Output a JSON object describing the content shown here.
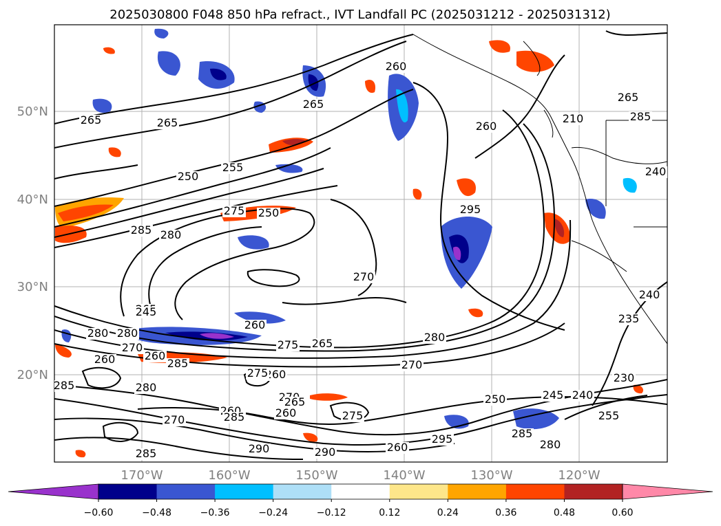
{
  "title": "2025030800 F048 850 hPa refract., IVT Landfall PC (2025031212 - 2025031312)",
  "map": {
    "lat_labels": [
      "50°N",
      "40°N",
      "30°N",
      "20°N"
    ],
    "lon_labels": [
      "170°W",
      "160°W",
      "150°W",
      "140°W",
      "130°W",
      "120°W"
    ],
    "contour_labels": [
      "265",
      "265",
      "265",
      "250",
      "255",
      "260",
      "250",
      "275",
      "260",
      "270",
      "285",
      "280",
      "295",
      "270",
      "265",
      "260",
      "245",
      "280",
      "280",
      "270",
      "285",
      "260",
      "275",
      "265",
      "260",
      "285",
      "280",
      "270",
      "260",
      "275",
      "270",
      "265",
      "260",
      "285",
      "275",
      "290",
      "285",
      "290",
      "260",
      "295",
      "285",
      "280",
      "250",
      "245",
      "240",
      "255",
      "230",
      "235",
      "240",
      "280",
      "240",
      "270",
      "210",
      "265",
      "285",
      "260"
    ]
  },
  "colorbar": {
    "colors": [
      "#9932cc",
      "#00008b",
      "#3a56d1",
      "#00bfff",
      "#aedff7",
      "#ffffff",
      "#fde68a",
      "#ffa500",
      "#ff4500",
      "#b22222",
      "#ff88a8"
    ],
    "ticks": [
      "−0.60",
      "−0.48",
      "−0.36",
      "−0.24",
      "−0.12",
      "0.12",
      "0.24",
      "0.36",
      "0.48",
      "0.60"
    ]
  }
}
